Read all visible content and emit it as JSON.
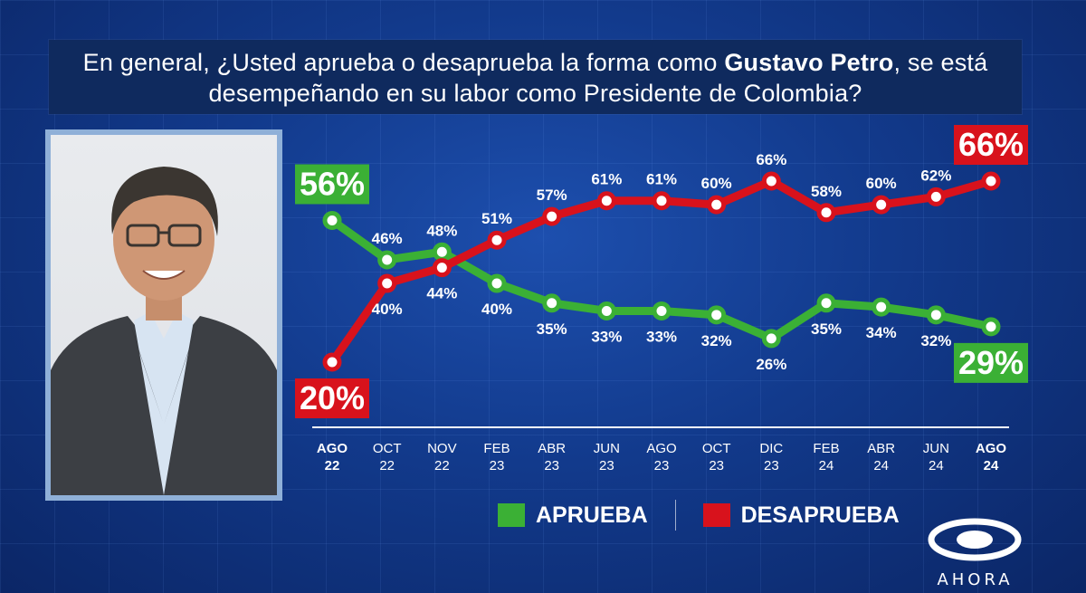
{
  "title": {
    "part1": "En general, ¿Usted aprueba o desaprueba la forma como ",
    "bold": "Gustavo Petro",
    "part2": ", se está desempeñando en su labor como Presidente de Colombia?"
  },
  "colors": {
    "aprueba": "#3bb035",
    "desaprueba": "#d8121c",
    "text": "#ffffff"
  },
  "legend": {
    "aprueba": "APRUEBA",
    "desaprueba": "DESAPRUEBA"
  },
  "logo": {
    "text": "AHORA",
    "icon": "caracol-logo-icon"
  },
  "chart_data": {
    "type": "line",
    "categories": [
      {
        "month": "AGO",
        "year": "22"
      },
      {
        "month": "OCT",
        "year": "22"
      },
      {
        "month": "NOV",
        "year": "22"
      },
      {
        "month": "FEB",
        "year": "23"
      },
      {
        "month": "ABR",
        "year": "23"
      },
      {
        "month": "JUN",
        "year": "23"
      },
      {
        "month": "AGO",
        "year": "23"
      },
      {
        "month": "OCT",
        "year": "23"
      },
      {
        "month": "DIC",
        "year": "23"
      },
      {
        "month": "FEB",
        "year": "24"
      },
      {
        "month": "ABR",
        "year": "24"
      },
      {
        "month": "JUN",
        "year": "24"
      },
      {
        "month": "AGO",
        "year": "24"
      }
    ],
    "series": [
      {
        "name": "APRUEBA",
        "values": [
          56,
          46,
          48,
          40,
          35,
          33,
          33,
          32,
          26,
          35,
          34,
          32,
          29
        ]
      },
      {
        "name": "DESAPRUEBA",
        "values": [
          20,
          40,
          44,
          51,
          57,
          61,
          61,
          60,
          66,
          58,
          60,
          62,
          66
        ]
      }
    ],
    "value_suffix": "%",
    "highlight_first_last": true,
    "legend_position": "bottom"
  }
}
